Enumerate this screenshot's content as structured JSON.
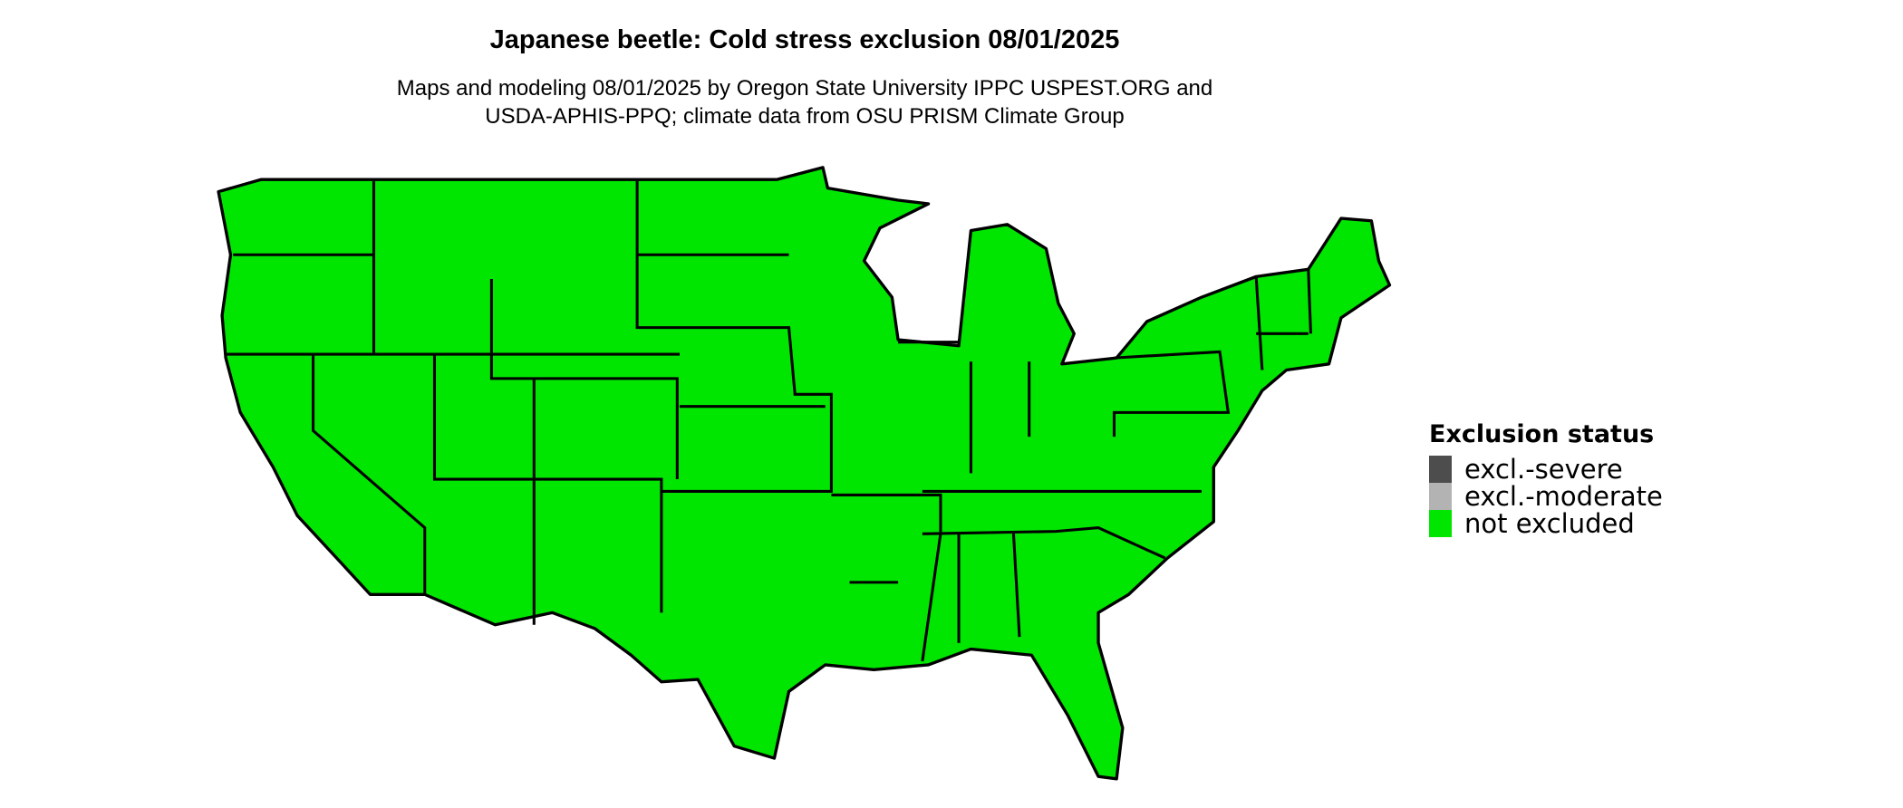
{
  "title": "Japanese beetle: Cold stress exclusion 08/01/2025",
  "subtitle_lines": [
    "Maps and modeling 08/01/2025 by Oregon State University IPPC USPEST.ORG and",
    "USDA-APHIS-PPQ; climate data from OSU PRISM Climate Group"
  ],
  "map": {
    "region": "Contiguous United States",
    "fill_status": "not excluded",
    "fill_color": "#00e600",
    "border_color": "#000000"
  },
  "legend": {
    "title": "Exclusion status",
    "items": [
      {
        "label": "excl.-severe",
        "color": "#4d4d4d"
      },
      {
        "label": "excl.-moderate",
        "color": "#b3b3b3"
      },
      {
        "label": "not excluded",
        "color": "#00e600"
      }
    ]
  }
}
